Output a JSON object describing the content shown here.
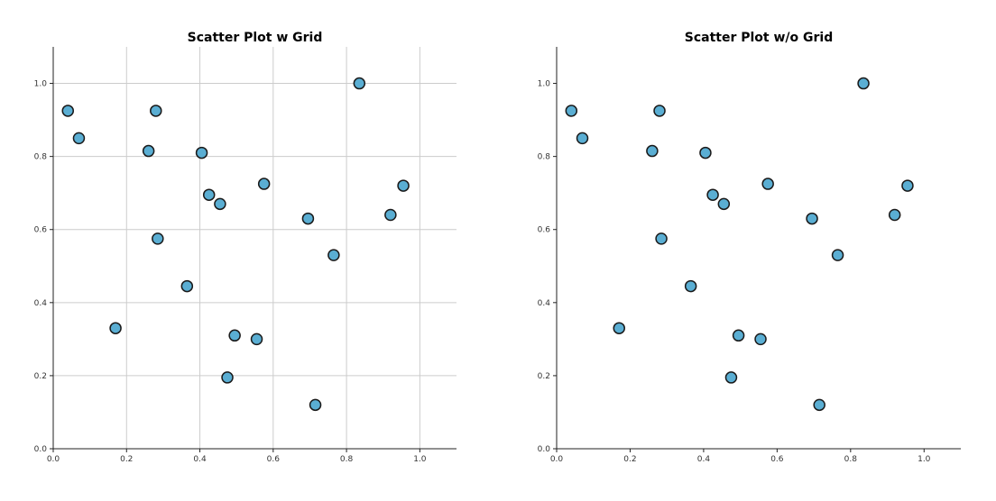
{
  "colors": {
    "point_fill": "#5aaed3",
    "point_edge": "#1a1a1a",
    "grid": "#cccccc",
    "axis": "#222222"
  },
  "chart_data": [
    {
      "type": "scatter",
      "title": "Scatter Plot w Grid",
      "grid": true,
      "xlim": [
        0,
        1.1
      ],
      "ylim": [
        0,
        1.1
      ],
      "xticks": [
        "0.0",
        "0.2",
        "0.4",
        "0.6",
        "0.8",
        "1.0"
      ],
      "yticks": [
        "0.0",
        "0.2",
        "0.4",
        "0.6",
        "0.8",
        "1.0"
      ],
      "xlabel": "",
      "ylabel": "",
      "x": [
        0.04,
        0.07,
        0.17,
        0.26,
        0.28,
        0.285,
        0.365,
        0.405,
        0.425,
        0.455,
        0.475,
        0.495,
        0.555,
        0.575,
        0.695,
        0.715,
        0.765,
        0.835,
        0.92,
        0.955
      ],
      "y": [
        0.925,
        0.85,
        0.33,
        0.815,
        0.925,
        0.575,
        0.445,
        0.81,
        0.695,
        0.67,
        0.195,
        0.31,
        0.3,
        0.725,
        0.63,
        0.12,
        0.53,
        1.0,
        0.64,
        0.72
      ]
    },
    {
      "type": "scatter",
      "title": "Scatter Plot w/o Grid",
      "grid": false,
      "xlim": [
        0,
        1.1
      ],
      "ylim": [
        0,
        1.1
      ],
      "xticks": [
        "0.0",
        "0.2",
        "0.4",
        "0.6",
        "0.8",
        "1.0"
      ],
      "yticks": [
        "0.0",
        "0.2",
        "0.4",
        "0.6",
        "0.8",
        "1.0"
      ],
      "xlabel": "",
      "ylabel": "",
      "x": [
        0.04,
        0.07,
        0.17,
        0.26,
        0.28,
        0.285,
        0.365,
        0.405,
        0.425,
        0.455,
        0.475,
        0.495,
        0.555,
        0.575,
        0.695,
        0.715,
        0.765,
        0.835,
        0.92,
        0.955
      ],
      "y": [
        0.925,
        0.85,
        0.33,
        0.815,
        0.925,
        0.575,
        0.445,
        0.81,
        0.695,
        0.67,
        0.195,
        0.31,
        0.3,
        0.725,
        0.63,
        0.12,
        0.53,
        1.0,
        0.64,
        0.72
      ]
    }
  ]
}
